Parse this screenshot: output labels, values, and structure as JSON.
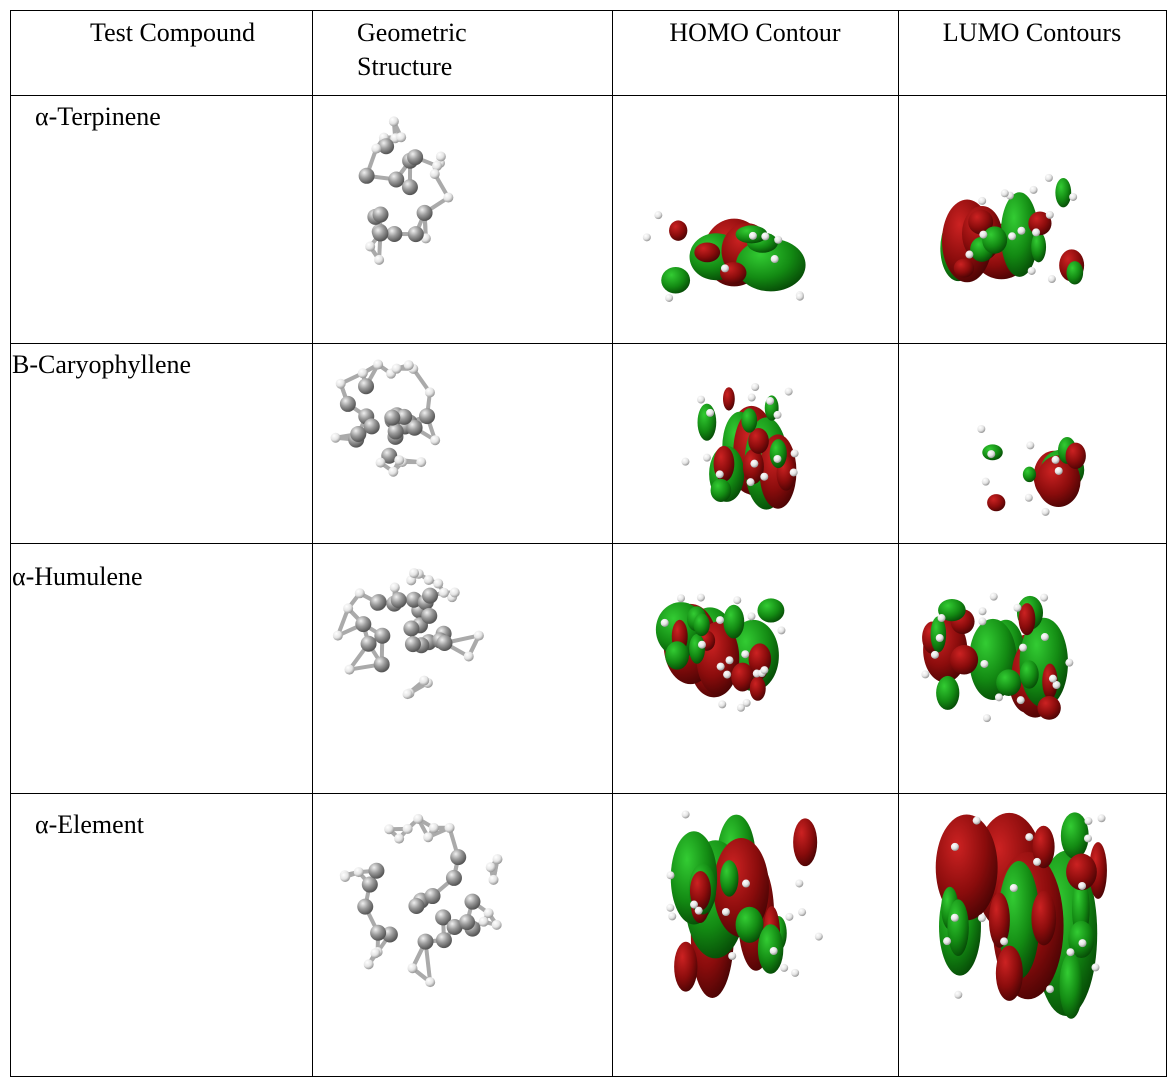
{
  "table": {
    "header": [
      "Test Compound",
      "Geometric Structure",
      "HOMO Contour",
      "LUMO Contours"
    ],
    "rows": [
      [
        "α-Terpinene"
      ],
      [
        "B-Caryophyllene"
      ],
      [
        "α-Humulene"
      ],
      [
        "α-Element"
      ]
    ]
  }
}
